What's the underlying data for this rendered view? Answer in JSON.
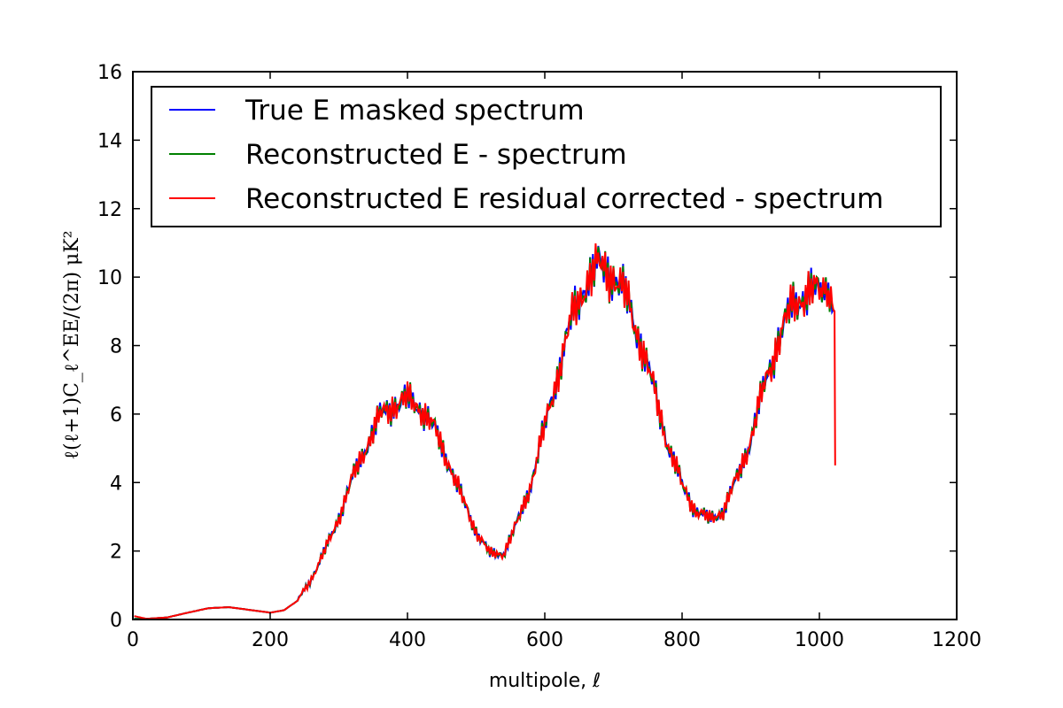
{
  "chart_data": {
    "type": "line",
    "xlabel": "multipole, ℓ",
    "ylabel": "ℓ(ℓ+1)C_ℓ^EE/(2π)  μK²",
    "xlim": [
      0,
      1200
    ],
    "ylim": [
      0,
      16
    ],
    "xticks": [
      "0",
      "200",
      "400",
      "600",
      "800",
      "1000",
      "1200"
    ],
    "yticks": [
      "0",
      "2",
      "4",
      "6",
      "8",
      "10",
      "12",
      "14",
      "16"
    ],
    "grid": false,
    "legend_position": "top",
    "series": [
      {
        "name": "True E masked spectrum",
        "color": "#0000ff",
        "x": [
          2,
          20,
          50,
          80,
          110,
          140,
          170,
          200,
          220,
          240,
          260,
          280,
          300,
          320,
          340,
          360,
          380,
          400,
          420,
          440,
          460,
          480,
          500,
          520,
          540,
          560,
          580,
          600,
          620,
          640,
          660,
          680,
          700,
          720,
          740,
          760,
          780,
          800,
          820,
          840,
          860,
          880,
          900,
          920,
          940,
          960,
          980,
          1000,
          1015,
          1022
        ],
        "y": [
          0.02,
          0.02,
          0.06,
          0.2,
          0.33,
          0.36,
          0.28,
          0.2,
          0.27,
          0.55,
          1.2,
          2.0,
          3.0,
          4.1,
          5.1,
          5.9,
          6.3,
          6.4,
          6.2,
          5.5,
          4.6,
          3.5,
          2.6,
          1.9,
          1.95,
          2.8,
          4.0,
          5.6,
          7.3,
          8.8,
          9.9,
          10.3,
          10.1,
          9.3,
          8.1,
          6.6,
          5.1,
          3.9,
          3.2,
          2.9,
          3.2,
          4.1,
          5.3,
          6.8,
          8.2,
          9.1,
          9.6,
          9.5,
          9.2,
          9.0
        ]
      },
      {
        "name": "Reconstructed E - spectrum",
        "color": "#008000",
        "x": [
          2,
          20,
          50,
          80,
          110,
          140,
          170,
          200,
          220,
          240,
          260,
          280,
          300,
          320,
          340,
          360,
          380,
          400,
          420,
          440,
          460,
          480,
          500,
          520,
          540,
          560,
          580,
          600,
          620,
          640,
          660,
          680,
          700,
          720,
          740,
          760,
          780,
          800,
          820,
          840,
          860,
          880,
          900,
          920,
          940,
          960,
          980,
          1000,
          1015,
          1022
        ],
        "y": [
          0.02,
          0.02,
          0.06,
          0.2,
          0.33,
          0.36,
          0.28,
          0.2,
          0.27,
          0.55,
          1.2,
          2.0,
          3.0,
          4.1,
          5.1,
          5.9,
          6.3,
          6.4,
          6.2,
          5.5,
          4.6,
          3.5,
          2.6,
          1.9,
          1.95,
          2.8,
          4.0,
          5.6,
          7.3,
          8.8,
          9.9,
          10.3,
          10.1,
          9.3,
          8.1,
          6.6,
          5.1,
          3.9,
          3.2,
          2.9,
          3.2,
          4.1,
          5.3,
          6.8,
          8.2,
          9.1,
          9.6,
          9.5,
          9.2,
          9.0
        ]
      },
      {
        "name": "Reconstructed E residual corrected - spectrum",
        "color": "#ff0000",
        "x": [
          2,
          20,
          50,
          80,
          110,
          140,
          170,
          200,
          220,
          240,
          260,
          280,
          300,
          320,
          340,
          360,
          380,
          400,
          420,
          440,
          460,
          480,
          500,
          520,
          540,
          560,
          580,
          600,
          620,
          640,
          660,
          680,
          700,
          720,
          740,
          760,
          780,
          800,
          820,
          840,
          860,
          880,
          900,
          920,
          940,
          960,
          980,
          1000,
          1015,
          1022,
          1023
        ],
        "y": [
          0.1,
          0.02,
          0.06,
          0.2,
          0.33,
          0.36,
          0.28,
          0.2,
          0.27,
          0.55,
          1.2,
          2.0,
          3.0,
          4.1,
          5.1,
          5.9,
          6.3,
          6.4,
          6.2,
          5.5,
          4.6,
          3.5,
          2.6,
          1.9,
          1.95,
          2.8,
          4.0,
          5.6,
          7.3,
          8.8,
          9.9,
          10.3,
          10.1,
          9.3,
          8.1,
          6.6,
          5.1,
          3.9,
          3.2,
          2.9,
          3.2,
          4.1,
          5.3,
          6.8,
          8.2,
          9.1,
          9.6,
          9.5,
          9.2,
          9.0,
          4.5
        ]
      }
    ]
  }
}
